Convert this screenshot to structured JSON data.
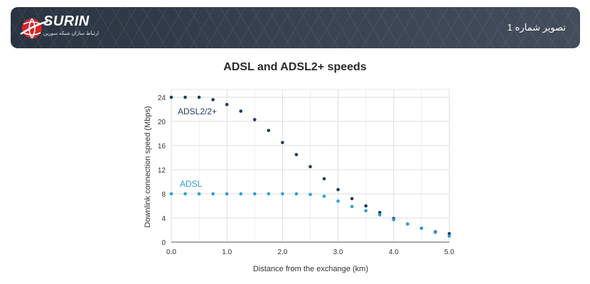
{
  "header": {
    "brand": "SURIN",
    "tagline": "ارتباط سازان شبکه سورین",
    "caption": "تصویر شماره 1",
    "logo_icon": "globe-logo-icon",
    "colors": {
      "accent_red": "#d7252a",
      "background": "#2f3946"
    }
  },
  "chart_data": {
    "type": "scatter",
    "title": "ADSL and ADSL2+ speeds",
    "xlabel": "Distance from the exchange (km)",
    "ylabel": "Downlink connection speed (Mbps)",
    "xlim": [
      0,
      5
    ],
    "ylim": [
      0,
      24
    ],
    "xticks": [
      "0.0",
      "1.0",
      "2.0",
      "3.0",
      "4.0",
      "5.0"
    ],
    "yticks": [
      "0",
      "4",
      "8",
      "12",
      "16",
      "20",
      "24"
    ],
    "grid": true,
    "series": [
      {
        "name": "ADSL2/2+",
        "color": "#1f3b5c",
        "x": [
          0,
          0.25,
          0.5,
          0.75,
          1.0,
          1.25,
          1.5,
          1.75,
          2.0,
          2.25,
          2.5,
          2.75,
          3.0,
          3.25,
          3.5,
          3.75,
          4.0,
          4.25,
          4.5,
          4.75,
          5.0
        ],
        "y": [
          24,
          24,
          24,
          23.6,
          22.8,
          21.7,
          20.3,
          18.5,
          16.5,
          14.5,
          12.5,
          10.5,
          8.7,
          7.2,
          6.0,
          4.9,
          3.9,
          3.0,
          2.3,
          1.7,
          1.4
        ]
      },
      {
        "name": "ADSL",
        "color": "#2a9fd8",
        "x": [
          0,
          0.25,
          0.5,
          0.75,
          1.0,
          1.25,
          1.5,
          1.75,
          2.0,
          2.25,
          2.5,
          2.75,
          3.0,
          3.25,
          3.5,
          3.75,
          4.0,
          4.25,
          4.5,
          4.75,
          5.0
        ],
        "y": [
          8,
          8,
          8,
          8,
          8,
          8,
          8,
          8,
          8,
          8,
          7.9,
          7.6,
          6.8,
          5.9,
          5.2,
          4.5,
          3.7,
          3.0,
          2.3,
          1.6,
          1.0
        ]
      }
    ]
  }
}
